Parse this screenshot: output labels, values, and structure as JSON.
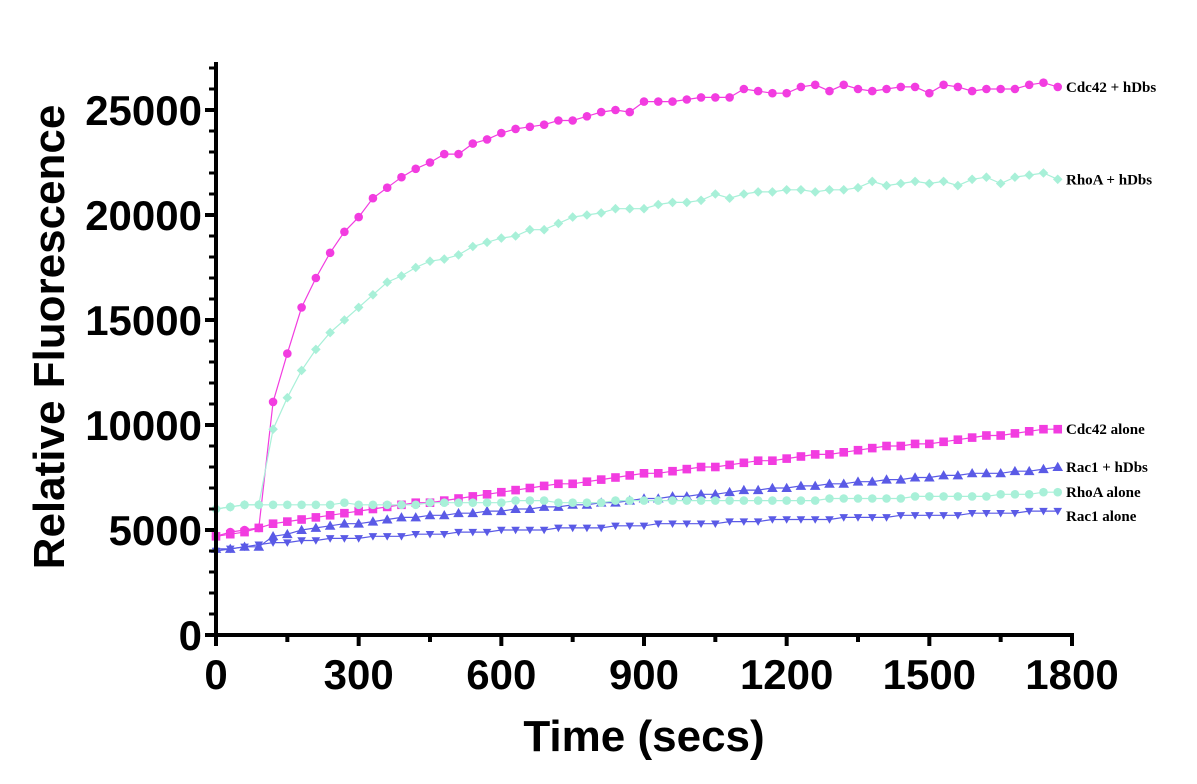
{
  "chart_data": {
    "type": "line",
    "title": "",
    "xlabel": "Time (secs)",
    "ylabel": "Relative Fluorescence",
    "xlim": [
      0,
      1800
    ],
    "ylim": [
      0,
      27000
    ],
    "xticks": [
      0,
      300,
      600,
      900,
      1200,
      1500,
      1800
    ],
    "yticks": [
      0,
      5000,
      10000,
      15000,
      20000,
      25000
    ],
    "xtick_labels": [
      "0",
      "300",
      "600",
      "900",
      "1200",
      "1500",
      "1800"
    ],
    "ytick_labels": [
      "0",
      "5000",
      "10000",
      "15000",
      "20000",
      "25000"
    ],
    "x": [
      0,
      30,
      60,
      90,
      120,
      150,
      180,
      210,
      240,
      270,
      300,
      330,
      360,
      390,
      420,
      450,
      480,
      510,
      540,
      570,
      600,
      630,
      660,
      690,
      720,
      750,
      780,
      810,
      840,
      870,
      900,
      930,
      960,
      990,
      1020,
      1050,
      1080,
      1110,
      1140,
      1170,
      1200,
      1230,
      1260,
      1290,
      1320,
      1350,
      1380,
      1410,
      1440,
      1470,
      1500,
      1530,
      1560,
      1590,
      1620,
      1650,
      1680,
      1710,
      1740,
      1770
    ],
    "series": [
      {
        "name": "Cdc42 + hDbs",
        "color": "#f23ce0",
        "marker": "circle",
        "values": [
          4700,
          4900,
          5000,
          5100,
          11100,
          13400,
          15600,
          17000,
          18200,
          19200,
          19900,
          20800,
          21300,
          21800,
          22200,
          22500,
          22900,
          22900,
          23400,
          23600,
          23900,
          24100,
          24200,
          24300,
          24500,
          24500,
          24700,
          24900,
          25000,
          24900,
          25400,
          25400,
          25400,
          25500,
          25600,
          25600,
          25600,
          26000,
          25900,
          25800,
          25800,
          26100,
          26200,
          25900,
          26200,
          26000,
          25900,
          26000,
          26100,
          26100,
          25800,
          26200,
          26100,
          25900,
          26000,
          26000,
          26000,
          26200,
          26300,
          26100
        ]
      },
      {
        "name": "RhoA + hDbs",
        "color": "#a8f0d8",
        "marker": "diamond",
        "values": [
          6000,
          6100,
          6200,
          6200,
          9800,
          11300,
          12600,
          13600,
          14400,
          15000,
          15600,
          16200,
          16800,
          17100,
          17500,
          17800,
          17900,
          18100,
          18500,
          18700,
          18900,
          19000,
          19300,
          19300,
          19600,
          19900,
          20000,
          20100,
          20300,
          20300,
          20300,
          20500,
          20600,
          20600,
          20700,
          21000,
          20800,
          21000,
          21100,
          21100,
          21200,
          21200,
          21100,
          21200,
          21200,
          21300,
          21600,
          21400,
          21500,
          21600,
          21500,
          21600,
          21400,
          21700,
          21800,
          21500,
          21800,
          21900,
          22000,
          21700
        ]
      },
      {
        "name": "Cdc42 alone",
        "color": "#f23ce0",
        "marker": "square",
        "values": [
          4700,
          4800,
          4900,
          5100,
          5300,
          5400,
          5500,
          5600,
          5700,
          5800,
          5900,
          6000,
          6100,
          6200,
          6300,
          6300,
          6400,
          6500,
          6600,
          6700,
          6800,
          6900,
          7000,
          7100,
          7200,
          7200,
          7300,
          7400,
          7500,
          7600,
          7700,
          7700,
          7800,
          7900,
          8000,
          8000,
          8100,
          8200,
          8300,
          8300,
          8400,
          8500,
          8600,
          8600,
          8700,
          8800,
          8900,
          9000,
          9000,
          9100,
          9100,
          9200,
          9300,
          9400,
          9500,
          9500,
          9600,
          9700,
          9800,
          9800
        ]
      },
      {
        "name": "Rac1 + hDbs",
        "color": "#5a5ae6",
        "marker": "triangle-up",
        "values": [
          4100,
          4100,
          4200,
          4200,
          4700,
          4800,
          5000,
          5100,
          5200,
          5300,
          5300,
          5400,
          5500,
          5600,
          5600,
          5700,
          5700,
          5800,
          5800,
          5900,
          5900,
          6000,
          6000,
          6100,
          6100,
          6200,
          6200,
          6300,
          6300,
          6400,
          6500,
          6500,
          6600,
          6600,
          6700,
          6700,
          6800,
          6900,
          6900,
          7000,
          7000,
          7100,
          7100,
          7200,
          7200,
          7300,
          7300,
          7400,
          7400,
          7500,
          7500,
          7600,
          7600,
          7700,
          7700,
          7700,
          7800,
          7800,
          7900,
          8000
        ]
      },
      {
        "name": "RhoA alone",
        "color": "#a8f0d8",
        "marker": "circle",
        "values": [
          6000,
          6100,
          6200,
          6200,
          6200,
          6200,
          6200,
          6200,
          6200,
          6300,
          6200,
          6200,
          6200,
          6200,
          6200,
          6300,
          6300,
          6300,
          6300,
          6300,
          6300,
          6400,
          6400,
          6400,
          6300,
          6300,
          6300,
          6300,
          6400,
          6400,
          6400,
          6400,
          6400,
          6400,
          6400,
          6400,
          6400,
          6400,
          6400,
          6400,
          6400,
          6400,
          6400,
          6500,
          6500,
          6500,
          6500,
          6500,
          6500,
          6600,
          6600,
          6600,
          6600,
          6600,
          6600,
          6700,
          6700,
          6700,
          6800,
          6800
        ]
      },
      {
        "name": "Rac1 alone",
        "color": "#5a5ae6",
        "marker": "triangle-down",
        "values": [
          4000,
          4100,
          4200,
          4300,
          4400,
          4400,
          4500,
          4500,
          4600,
          4600,
          4600,
          4700,
          4700,
          4700,
          4800,
          4800,
          4800,
          4900,
          4900,
          4900,
          5000,
          5000,
          5000,
          5000,
          5100,
          5100,
          5100,
          5100,
          5200,
          5200,
          5200,
          5300,
          5300,
          5300,
          5300,
          5300,
          5400,
          5400,
          5400,
          5500,
          5500,
          5500,
          5500,
          5500,
          5600,
          5600,
          5600,
          5600,
          5700,
          5700,
          5700,
          5700,
          5700,
          5800,
          5800,
          5800,
          5800,
          5900,
          5900,
          5900
        ]
      }
    ]
  }
}
